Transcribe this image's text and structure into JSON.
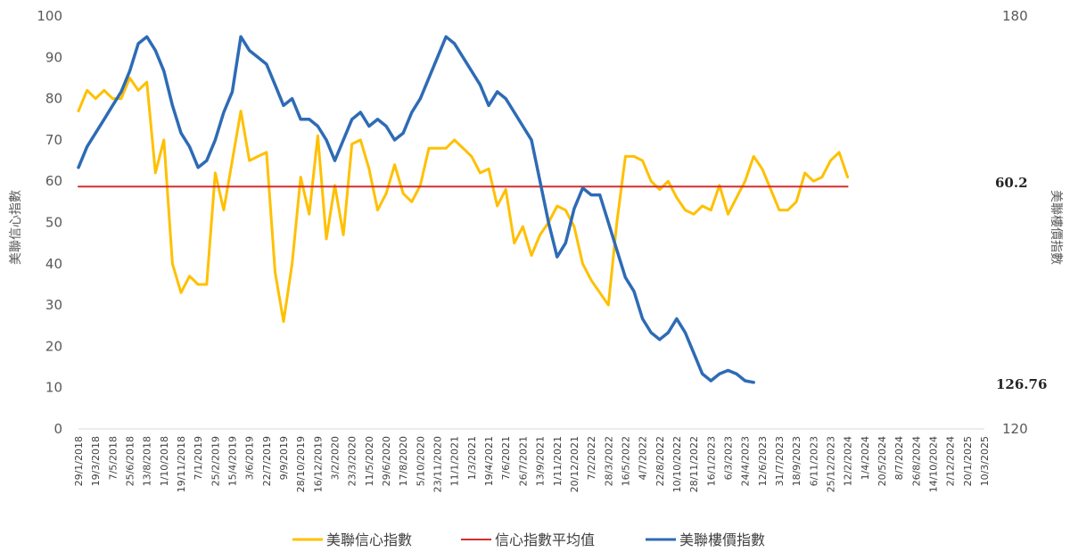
{
  "chart_data": {
    "type": "line",
    "title": "",
    "ylabel": "美聯信心指數",
    "y2label": "美聯樓價指數",
    "ylim": [
      0,
      100
    ],
    "y2lim": [
      120,
      180
    ],
    "yticks": [
      0,
      10,
      20,
      30,
      40,
      50,
      60,
      70,
      80,
      90,
      100
    ],
    "y2ticks": [
      120,
      180
    ],
    "grid": false,
    "legend_position": "bottom",
    "x_labels": [
      "29/1/2018",
      "19/3/2018",
      "7/5/2018",
      "25/6/2018",
      "13/8/2018",
      "1/10/2018",
      "19/11/2018",
      "7/1/2019",
      "25/2/2019",
      "15/4/2019",
      "3/6/2019",
      "22/7/2019",
      "9/9/2019",
      "28/10/2019",
      "16/12/2019",
      "3/2/2020",
      "23/3/2020",
      "11/5/2020",
      "29/6/2020",
      "17/8/2020",
      "5/10/2020",
      "23/11/2020",
      "11/1/2021",
      "1/3/2021",
      "19/4/2021",
      "7/6/2021",
      "26/7/2021",
      "13/9/2021",
      "1/11/2021",
      "20/12/2021",
      "7/2/2022",
      "28/3/2022",
      "16/5/2022",
      "4/7/2022",
      "22/8/2022",
      "10/10/2022",
      "28/11/2022",
      "16/1/2023",
      "6/3/2023",
      "24/4/2023",
      "12/6/2023",
      "31/7/2023",
      "18/9/2023",
      "6/11/2023",
      "25/12/2023",
      "12/2/2024",
      "1/4/2024",
      "20/5/2024",
      "8/7/2024",
      "26/8/2024",
      "14/10/2024",
      "2/12/2024",
      "20/1/2025",
      "10/3/2025"
    ],
    "series": [
      {
        "name": "美聯信心指數",
        "axis": "left",
        "color": "#FFC000",
        "values": [
          [
            0,
            77
          ],
          [
            0.5,
            82
          ],
          [
            1,
            80
          ],
          [
            1.5,
            82
          ],
          [
            2,
            80
          ],
          [
            2.5,
            80
          ],
          [
            3,
            85
          ],
          [
            3.5,
            82
          ],
          [
            4,
            84
          ],
          [
            4.5,
            62
          ],
          [
            5,
            70
          ],
          [
            5.5,
            40
          ],
          [
            6,
            33
          ],
          [
            6.5,
            37
          ],
          [
            7,
            35
          ],
          [
            7.5,
            35
          ],
          [
            8,
            62
          ],
          [
            8.5,
            53
          ],
          [
            9,
            65
          ],
          [
            9.5,
            77
          ],
          [
            10,
            65
          ],
          [
            10.5,
            66
          ],
          [
            11,
            67
          ],
          [
            11.5,
            38
          ],
          [
            12,
            26
          ],
          [
            12.5,
            40
          ],
          [
            13,
            61
          ],
          [
            13.5,
            52
          ],
          [
            14,
            71
          ],
          [
            14.5,
            46
          ],
          [
            15,
            59
          ],
          [
            15.5,
            47
          ],
          [
            16,
            69
          ],
          [
            16.5,
            70
          ],
          [
            17,
            63
          ],
          [
            17.5,
            53
          ],
          [
            18,
            57
          ],
          [
            18.5,
            64
          ],
          [
            19,
            57
          ],
          [
            19.5,
            55
          ],
          [
            20,
            59
          ],
          [
            20.5,
            68
          ],
          [
            21,
            68
          ],
          [
            21.5,
            68
          ],
          [
            22,
            70
          ],
          [
            22.5,
            68
          ],
          [
            23,
            66
          ],
          [
            23.5,
            62
          ],
          [
            24,
            63
          ],
          [
            24.5,
            54
          ],
          [
            25,
            58
          ],
          [
            25.5,
            45
          ],
          [
            26,
            49
          ],
          [
            26.5,
            42
          ],
          [
            27,
            47
          ],
          [
            27.5,
            50
          ],
          [
            28,
            54
          ],
          [
            28.5,
            53
          ],
          [
            29,
            49
          ],
          [
            29.5,
            40
          ],
          [
            30,
            36
          ],
          [
            30.5,
            33
          ],
          [
            31,
            30
          ],
          [
            31.5,
            50
          ],
          [
            32,
            66
          ],
          [
            32.5,
            66
          ],
          [
            33,
            65
          ],
          [
            33.5,
            60
          ],
          [
            34,
            58
          ],
          [
            34.5,
            60
          ],
          [
            35,
            56
          ],
          [
            35.5,
            53
          ],
          [
            36,
            52
          ],
          [
            36.5,
            54
          ],
          [
            37,
            53
          ],
          [
            37.5,
            59
          ],
          [
            38,
            52
          ],
          [
            38.5,
            56
          ],
          [
            39,
            60
          ],
          [
            39.5,
            66
          ],
          [
            40,
            63
          ],
          [
            40.5,
            58
          ],
          [
            41,
            53
          ],
          [
            41.5,
            53
          ],
          [
            42,
            55
          ],
          [
            42.5,
            62
          ],
          [
            43,
            60
          ],
          [
            43.5,
            61
          ],
          [
            44,
            65
          ],
          [
            44.5,
            67
          ],
          [
            45,
            61
          ]
        ]
      },
      {
        "name": "信心指數平均值",
        "axis": "left",
        "color": "#D62E2E",
        "values": [
          [
            0,
            58.7
          ],
          [
            45,
            58.7
          ]
        ]
      },
      {
        "name": "美聯樓價指數",
        "axis": "right",
        "color": "#2E6BB5",
        "values": [
          [
            0,
            158
          ],
          [
            0.5,
            161
          ],
          [
            1,
            163
          ],
          [
            1.5,
            165
          ],
          [
            2,
            167
          ],
          [
            2.5,
            169
          ],
          [
            3,
            172
          ],
          [
            3.5,
            176
          ],
          [
            4,
            177
          ],
          [
            4.5,
            175
          ],
          [
            5,
            172
          ],
          [
            5.5,
            167
          ],
          [
            6,
            163
          ],
          [
            6.5,
            161
          ],
          [
            7,
            158
          ],
          [
            7.5,
            159
          ],
          [
            8,
            162
          ],
          [
            8.5,
            166
          ],
          [
            9,
            169
          ],
          [
            9.5,
            177
          ],
          [
            10,
            175
          ],
          [
            10.5,
            174
          ],
          [
            11,
            173
          ],
          [
            11.5,
            170
          ],
          [
            12,
            167
          ],
          [
            12.5,
            168
          ],
          [
            13,
            165
          ],
          [
            13.5,
            165
          ],
          [
            14,
            164
          ],
          [
            14.5,
            162
          ],
          [
            15,
            159
          ],
          [
            15.5,
            162
          ],
          [
            16,
            165
          ],
          [
            16.5,
            166
          ],
          [
            17,
            164
          ],
          [
            17.5,
            165
          ],
          [
            18,
            164
          ],
          [
            18.5,
            162
          ],
          [
            19,
            163
          ],
          [
            19.5,
            166
          ],
          [
            20,
            168
          ],
          [
            20.5,
            171
          ],
          [
            21,
            174
          ],
          [
            21.5,
            177
          ],
          [
            22,
            176
          ],
          [
            22.5,
            174
          ],
          [
            23,
            172
          ],
          [
            23.5,
            170
          ],
          [
            24,
            167
          ],
          [
            24.5,
            169
          ],
          [
            25,
            168
          ],
          [
            25.5,
            166
          ],
          [
            26,
            164
          ],
          [
            26.5,
            162
          ],
          [
            27,
            156
          ],
          [
            27.5,
            150
          ],
          [
            28,
            145
          ],
          [
            28.5,
            147
          ],
          [
            29,
            152
          ],
          [
            29.5,
            155
          ],
          [
            30,
            154
          ],
          [
            30.5,
            154
          ],
          [
            31,
            150
          ],
          [
            31.5,
            146
          ],
          [
            32,
            142
          ],
          [
            32.5,
            140
          ],
          [
            33,
            136
          ],
          [
            33.5,
            134
          ],
          [
            34,
            133
          ],
          [
            34.5,
            134
          ],
          [
            35,
            136
          ],
          [
            35.5,
            134
          ],
          [
            36,
            131
          ],
          [
            36.5,
            128
          ],
          [
            37,
            127
          ],
          [
            37.5,
            128
          ],
          [
            38,
            128.5
          ],
          [
            38.5,
            128
          ],
          [
            39,
            127
          ],
          [
            39.5,
            126.76
          ]
        ]
      }
    ],
    "annotations": [
      "60.2",
      "126.76"
    ],
    "legend": [
      "美聯信心指數",
      "信心指數平均值",
      "美聯樓價指數"
    ]
  }
}
